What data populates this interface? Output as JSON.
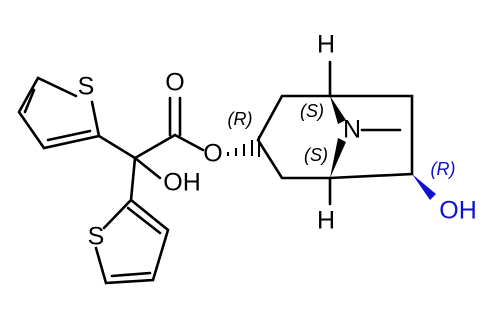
{
  "atom_labels": [
    "S",
    "S",
    "O",
    "OH",
    "O",
    "N",
    "H",
    "H",
    "OH"
  ],
  "stereo_labels": [
    "(R)",
    "(S)",
    "(S)",
    "(R)"
  ]
}
